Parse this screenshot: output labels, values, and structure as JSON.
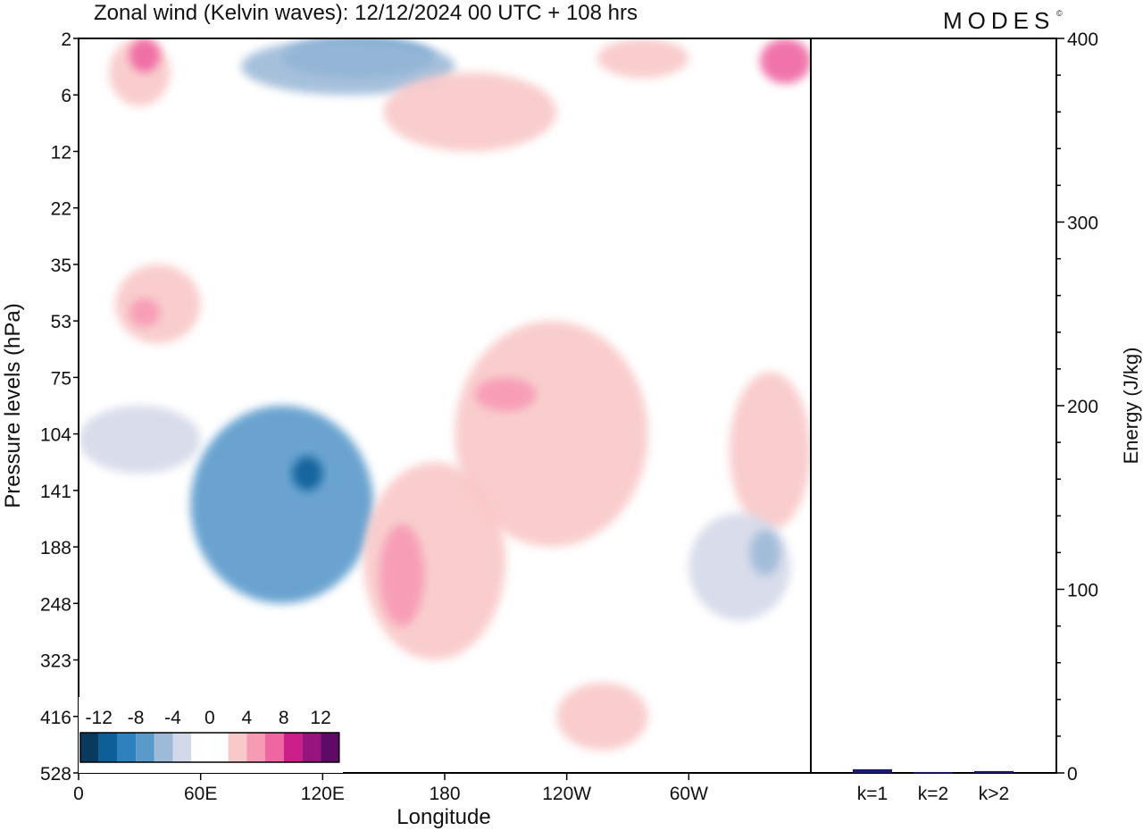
{
  "brand": "MODES",
  "brand_mark": "©",
  "chart_data": [
    {
      "type": "heatmap",
      "title": "Zonal wind (Kelvin waves):  12/12/2024  00 UTC  + 108 hrs",
      "xlabel": "Longitude",
      "ylabel": "Pressure levels (hPa)",
      "x_ticks": [
        "0",
        "60E",
        "120E",
        "180",
        "120W",
        "60W"
      ],
      "x_tick_values_deg": [
        0,
        60,
        120,
        180,
        240,
        300
      ],
      "xlim_deg": [
        0,
        360
      ],
      "y_ticks": [
        "2",
        "6",
        "12",
        "22",
        "35",
        "53",
        "75",
        "104",
        "141",
        "188",
        "248",
        "323",
        "416",
        "528"
      ],
      "y_scale": "categorical pressure levels, top to bottom",
      "legend": {
        "position": "bottom-left",
        "labels": [
          "-12",
          "-8",
          "-4",
          "0",
          "4",
          "8",
          "12"
        ],
        "colors": [
          "#083a5e",
          "#0d5f99",
          "#2f81bd",
          "#5a9acb",
          "#9dbad8",
          "#d4d9e9",
          "#ffffff",
          "#ffffff",
          "#f9c8c8",
          "#f79ab4",
          "#ef66a3",
          "#cc1f8a",
          "#97147c",
          "#5e0a66"
        ]
      },
      "contour_regions": [
        {
          "name": "neg-strong-strat-top",
          "level": -8,
          "lon": [
            100,
            175
          ],
          "lev": [
            0,
            0.7
          ],
          "color": "#2f81bd"
        },
        {
          "name": "neg-strat-top",
          "level": -4,
          "lon": [
            80,
            185
          ],
          "lev": [
            0,
            1.0
          ],
          "color": "#9dbad8"
        },
        {
          "name": "pos-upper-left",
          "level": 4,
          "lon": [
            15,
            45
          ],
          "lev": [
            0,
            1.2
          ],
          "color": "#f9c8c8"
        },
        {
          "name": "pos-upper-left-core",
          "level": 8,
          "lon": [
            25,
            40
          ],
          "lev": [
            0,
            0.6
          ],
          "color": "#ef66a3"
        },
        {
          "name": "pos-upper-band",
          "level": 4,
          "lon": [
            150,
            235
          ],
          "lev": [
            0.6,
            2.0
          ],
          "color": "#f9c8c8"
        },
        {
          "name": "pos-upper-right",
          "level": 4,
          "lon": [
            255,
            300
          ],
          "lev": [
            0,
            0.7
          ],
          "color": "#f9c8c8"
        },
        {
          "name": "pos-upper-far-right",
          "level": 8,
          "lon": [
            335,
            360
          ],
          "lev": [
            0,
            0.8
          ],
          "color": "#ef66a3"
        },
        {
          "name": "pos-mid-left",
          "level": 4,
          "lon": [
            18,
            60
          ],
          "lev": [
            4.0,
            5.4
          ],
          "color": "#f9c8c8"
        },
        {
          "name": "pos-mid-left-core",
          "level": 8,
          "lon": [
            25,
            40
          ],
          "lev": [
            4.6,
            5.1
          ],
          "color": "#f79ab4"
        },
        {
          "name": "neg-diagonal-band",
          "level": -8,
          "lon": [
            55,
            145
          ],
          "lev": [
            6.5,
            10.0
          ],
          "color": "#5a9acb"
        },
        {
          "name": "neg-diagonal-core",
          "level": -12,
          "lon": [
            105,
            120
          ],
          "lev": [
            7.4,
            8.0
          ],
          "color": "#0d5f99"
        },
        {
          "name": "neg-left-upper-trop",
          "level": -4,
          "lon": [
            0,
            60
          ],
          "lev": [
            6.5,
            7.7
          ],
          "color": "#d4d9e9"
        },
        {
          "name": "pos-central-trop",
          "level": 4,
          "lon": [
            140,
            210
          ],
          "lev": [
            7.5,
            11.0
          ],
          "color": "#f9c8c8"
        },
        {
          "name": "pos-central-trop-core",
          "level": 8,
          "lon": [
            148,
            170
          ],
          "lev": [
            8.6,
            10.4
          ],
          "color": "#f79ab4"
        },
        {
          "name": "pos-right-trop",
          "level": 4,
          "lon": [
            185,
            280
          ],
          "lev": [
            5.0,
            9.0
          ],
          "color": "#f9c8c8"
        },
        {
          "name": "pos-right-trop-core",
          "level": 8,
          "lon": [
            195,
            225
          ],
          "lev": [
            6.0,
            6.6
          ],
          "color": "#f79ab4"
        },
        {
          "name": "pos-lower-right",
          "level": 4,
          "lon": [
            235,
            280
          ],
          "lev": [
            11.4,
            12.6
          ],
          "color": "#f9c8c8"
        },
        {
          "name": "pos-far-right-trop",
          "level": 4,
          "lon": [
            320,
            360
          ],
          "lev": [
            5.9,
            8.7
          ],
          "color": "#f9c8c8"
        },
        {
          "name": "neg-right-lower",
          "level": -4,
          "lon": [
            300,
            350
          ],
          "lev": [
            8.4,
            10.3
          ],
          "color": "#d4d9e9"
        },
        {
          "name": "neg-right-lower-core",
          "level": -8,
          "lon": [
            330,
            345
          ],
          "lev": [
            8.7,
            9.5
          ],
          "color": "#9dbad8"
        }
      ]
    },
    {
      "type": "bar",
      "categories": [
        "k=1",
        "k=2",
        "k>2"
      ],
      "values": [
        2,
        0.5,
        1
      ],
      "ylabel": "Energy (J/kg)",
      "ylim": [
        0,
        400
      ],
      "y_ticks": [
        0,
        100,
        200,
        300,
        400
      ],
      "bar_color": "#1a1a6e"
    }
  ]
}
